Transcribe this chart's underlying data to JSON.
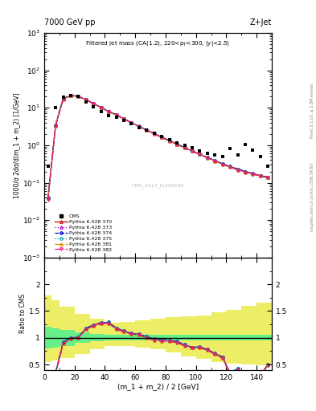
{
  "title_left": "7000 GeV pp",
  "title_right": "Z+Jet",
  "plot_title": "Filtered jet mass (CA(1.2), 220<p_{T}<300, |y|<2.5)",
  "xlabel": "(m_1 + m_2) / 2 [GeV]",
  "ylabel_main": "1000/σ 2dσ/d(m_1 + m_2) [1/GeV]",
  "ylabel_ratio": "Ratio to CMS",
  "right_label": "Rivet 3.1.10, ≥ 2.8M events",
  "right_label2": "mcplots.cern.ch [arXiv:1306.3436]",
  "watermark": "CMS_2013_I1224539",
  "xlim": [
    0,
    150
  ],
  "ylim_main": [
    0.001,
    1000.0
  ],
  "ylim_ratio": [
    0.4,
    2.5
  ],
  "xdata": [
    2.5,
    7.5,
    12.5,
    17.5,
    22.5,
    27.5,
    32.5,
    37.5,
    42.5,
    47.5,
    52.5,
    57.5,
    62.5,
    67.5,
    72.5,
    77.5,
    82.5,
    87.5,
    92.5,
    97.5,
    102.5,
    107.5,
    112.5,
    117.5,
    122.5,
    127.5,
    132.5,
    137.5,
    142.5,
    147.5
  ],
  "cms_data": [
    0.27,
    10.0,
    19.0,
    21.5,
    20.0,
    14.0,
    10.5,
    8.0,
    6.2,
    5.5,
    4.5,
    3.7,
    3.0,
    2.5,
    2.1,
    1.7,
    1.4,
    1.15,
    1.0,
    0.85,
    0.7,
    0.6,
    0.55,
    0.5,
    0.8,
    0.55,
    1.05,
    0.75,
    0.5,
    0.28
  ],
  "py370": [
    0.04,
    3.5,
    17.5,
    21.5,
    20.2,
    16.5,
    13.0,
    10.2,
    8.0,
    6.5,
    5.1,
    4.0,
    3.2,
    2.55,
    2.05,
    1.65,
    1.33,
    1.07,
    0.87,
    0.7,
    0.58,
    0.47,
    0.39,
    0.32,
    0.27,
    0.23,
    0.2,
    0.175,
    0.155,
    0.14
  ],
  "py373": [
    0.04,
    3.5,
    17.5,
    21.5,
    20.2,
    16.5,
    13.0,
    10.2,
    8.0,
    6.5,
    5.1,
    4.0,
    3.2,
    2.55,
    2.05,
    1.65,
    1.33,
    1.07,
    0.87,
    0.7,
    0.58,
    0.47,
    0.39,
    0.32,
    0.27,
    0.23,
    0.2,
    0.175,
    0.155,
    0.14
  ],
  "py374": [
    0.04,
    3.5,
    17.5,
    21.5,
    20.2,
    16.5,
    13.0,
    10.2,
    8.0,
    6.5,
    5.1,
    4.0,
    3.2,
    2.55,
    2.05,
    1.65,
    1.33,
    1.07,
    0.87,
    0.7,
    0.58,
    0.47,
    0.39,
    0.32,
    0.27,
    0.23,
    0.2,
    0.175,
    0.155,
    0.14
  ],
  "py375": [
    0.04,
    3.5,
    17.5,
    21.5,
    20.2,
    16.5,
    13.0,
    10.2,
    8.0,
    6.5,
    5.1,
    4.0,
    3.2,
    2.55,
    2.05,
    1.65,
    1.33,
    1.07,
    0.87,
    0.7,
    0.58,
    0.47,
    0.39,
    0.32,
    0.27,
    0.23,
    0.2,
    0.175,
    0.155,
    0.14
  ],
  "py381": [
    0.038,
    3.3,
    17.0,
    21.0,
    20.0,
    16.3,
    12.8,
    10.1,
    7.9,
    6.4,
    5.0,
    3.95,
    3.15,
    2.5,
    2.0,
    1.6,
    1.3,
    1.05,
    0.85,
    0.69,
    0.57,
    0.46,
    0.38,
    0.31,
    0.26,
    0.22,
    0.19,
    0.17,
    0.15,
    0.135
  ],
  "py382": [
    0.035,
    3.2,
    17.0,
    21.0,
    20.0,
    16.3,
    12.8,
    10.1,
    7.9,
    6.4,
    5.0,
    3.95,
    3.15,
    2.5,
    2.0,
    1.6,
    1.3,
    1.05,
    0.85,
    0.69,
    0.57,
    0.46,
    0.38,
    0.31,
    0.26,
    0.22,
    0.19,
    0.17,
    0.15,
    0.135
  ],
  "ratio_x": [
    2.5,
    7.5,
    12.5,
    17.5,
    22.5,
    27.5,
    32.5,
    37.5,
    42.5,
    47.5,
    52.5,
    57.5,
    62.5,
    67.5,
    72.5,
    77.5,
    82.5,
    87.5,
    92.5,
    97.5,
    102.5,
    107.5,
    112.5,
    117.5,
    122.5,
    127.5,
    132.5,
    137.5,
    142.5,
    147.5
  ],
  "ratio_370": [
    0.148,
    0.35,
    0.92,
    1.0,
    1.01,
    1.18,
    1.24,
    1.28,
    1.29,
    1.18,
    1.13,
    1.08,
    1.07,
    1.02,
    0.98,
    0.97,
    0.95,
    0.93,
    0.87,
    0.82,
    0.83,
    0.78,
    0.71,
    0.64,
    0.34,
    0.42,
    0.19,
    0.23,
    0.31,
    0.5
  ],
  "ratio_373": [
    0.148,
    0.35,
    0.92,
    1.0,
    1.01,
    1.18,
    1.24,
    1.28,
    1.29,
    1.18,
    1.13,
    1.08,
    1.07,
    1.02,
    0.98,
    0.97,
    0.95,
    0.93,
    0.87,
    0.82,
    0.83,
    0.78,
    0.71,
    0.64,
    0.34,
    0.42,
    0.19,
    0.23,
    0.31,
    0.5
  ],
  "ratio_374": [
    0.148,
    0.35,
    0.92,
    1.0,
    1.01,
    1.18,
    1.24,
    1.28,
    1.29,
    1.18,
    1.13,
    1.08,
    1.07,
    1.02,
    0.98,
    0.97,
    0.95,
    0.93,
    0.87,
    0.82,
    0.83,
    0.78,
    0.71,
    0.64,
    0.34,
    0.42,
    0.19,
    0.23,
    0.31,
    0.5
  ],
  "ratio_375": [
    0.148,
    0.35,
    0.92,
    1.0,
    1.01,
    1.18,
    1.24,
    1.28,
    1.29,
    1.18,
    1.13,
    1.08,
    1.07,
    1.02,
    0.98,
    0.97,
    0.95,
    0.93,
    0.87,
    0.82,
    0.83,
    0.78,
    0.71,
    0.64,
    0.34,
    0.42,
    0.19,
    0.23,
    0.31,
    0.5
  ],
  "ratio_381": [
    0.141,
    0.33,
    0.89,
    0.98,
    1.0,
    1.16,
    1.22,
    1.26,
    1.27,
    1.16,
    1.11,
    1.07,
    1.05,
    1.0,
    0.95,
    0.94,
    0.93,
    0.91,
    0.85,
    0.81,
    0.81,
    0.77,
    0.69,
    0.62,
    0.33,
    0.4,
    0.18,
    0.23,
    0.3,
    0.48
  ],
  "ratio_382": [
    0.13,
    0.32,
    0.89,
    0.98,
    1.0,
    1.16,
    1.22,
    1.26,
    1.27,
    1.16,
    1.11,
    1.07,
    1.05,
    1.0,
    0.95,
    0.94,
    0.93,
    0.91,
    0.85,
    0.81,
    0.81,
    0.77,
    0.69,
    0.62,
    0.33,
    0.4,
    0.18,
    0.23,
    0.3,
    0.48
  ],
  "band_edges": [
    0,
    5,
    10,
    20,
    30,
    40,
    50,
    60,
    70,
    80,
    90,
    100,
    110,
    120,
    130,
    140,
    150
  ],
  "green_lo": [
    0.8,
    0.82,
    0.85,
    0.9,
    0.93,
    0.95,
    0.95,
    0.95,
    0.95,
    0.95,
    0.95,
    0.95,
    0.95,
    0.95,
    0.95,
    0.95
  ],
  "green_hi": [
    1.2,
    1.18,
    1.15,
    1.1,
    1.07,
    1.05,
    1.05,
    1.05,
    1.05,
    1.05,
    1.05,
    1.05,
    1.05,
    1.05,
    1.05,
    1.05
  ],
  "yellow_lo": [
    0.55,
    0.58,
    0.62,
    0.7,
    0.78,
    0.85,
    0.85,
    0.82,
    0.78,
    0.72,
    0.65,
    0.6,
    0.55,
    0.52,
    0.5,
    0.48
  ],
  "yellow_hi": [
    1.8,
    1.7,
    1.58,
    1.45,
    1.35,
    1.28,
    1.3,
    1.32,
    1.35,
    1.38,
    1.4,
    1.42,
    1.48,
    1.52,
    1.6,
    1.65
  ],
  "color_370": "#cc0000",
  "color_373": "#aa00cc",
  "color_374": "#0000cc",
  "color_375": "#00aaaa",
  "color_381": "#cc8800",
  "color_382": "#ee1177",
  "ls_370": "-",
  "ls_373": ":",
  "ls_374": "--",
  "ls_375": ":",
  "ls_381": "-.",
  "ls_382": "-.",
  "marker_370": "^",
  "marker_373": "^",
  "marker_374": "o",
  "marker_375": "o",
  "marker_381": "^",
  "marker_382": "v",
  "green_color": "#66ee88",
  "yellow_color": "#eeee66"
}
